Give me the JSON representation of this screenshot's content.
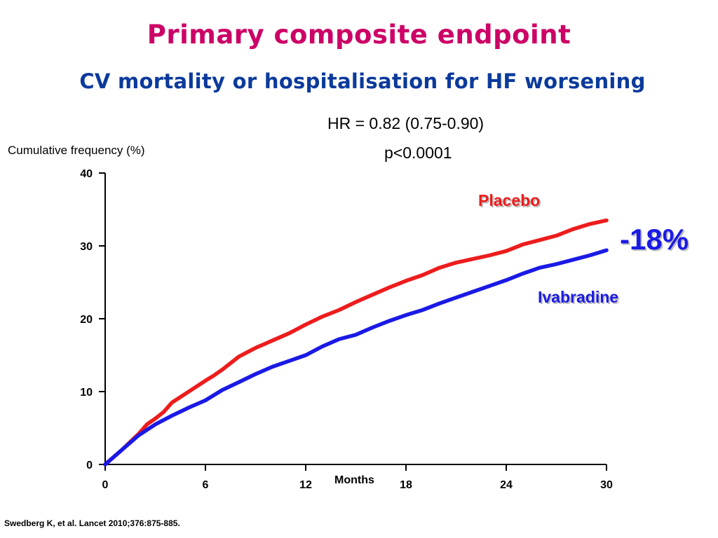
{
  "slide": {
    "title": "Primary composite endpoint",
    "subtitle": "CV mortality or hospitalisation for HF worsening",
    "hr_text": "HR = 0.82 (0.75-0.90)",
    "p_text": "p<0.0001",
    "reduction_text": "-18%",
    "citation": "Swedberg K, et al. Lancet 2010;376:875-885."
  },
  "colors": {
    "title": "#cc0066",
    "subtitle": "#0b3a9c",
    "placebo": "#ee1c1c",
    "ivabradine": "#1a1ae6"
  },
  "chart_data": {
    "type": "line",
    "title": "",
    "xlabel": "Months",
    "ylabel": "Cumulative frequency (%)",
    "xlim": [
      0,
      30
    ],
    "ylim": [
      0,
      40
    ],
    "xticks": [
      "0",
      "6",
      "12",
      "18",
      "24",
      "30"
    ],
    "yticks": [
      "0",
      "10",
      "20",
      "30",
      "40"
    ],
    "grid": false,
    "legend": "inline labels at right",
    "series": [
      {
        "name": "Placebo",
        "color": "#ee1c1c",
        "x": [
          0,
          1,
          2,
          2.5,
          3,
          3.5,
          4,
          5,
          6,
          6.5,
          7,
          8,
          9,
          10,
          11,
          12,
          13,
          14,
          15,
          16,
          17,
          18,
          19,
          20,
          21,
          22,
          23,
          24,
          25,
          26,
          27,
          28,
          29,
          30
        ],
        "y": [
          0,
          2.0,
          4.2,
          5.5,
          6.3,
          7.2,
          8.5,
          10.0,
          11.5,
          12.2,
          13.0,
          14.8,
          16.0,
          17.0,
          18.0,
          19.2,
          20.3,
          21.2,
          22.3,
          23.3,
          24.3,
          25.2,
          26.0,
          27.0,
          27.7,
          28.2,
          28.7,
          29.3,
          30.2,
          30.8,
          31.4,
          32.3,
          33.0,
          33.5
        ]
      },
      {
        "name": "Ivabradine",
        "color": "#1a1ae6",
        "x": [
          0,
          1,
          2,
          3,
          4,
          5,
          6,
          7,
          8,
          9,
          10,
          11,
          12,
          13,
          14,
          15,
          16,
          17,
          18,
          19,
          20,
          21,
          22,
          23,
          24,
          25,
          26,
          27,
          28,
          29,
          30
        ],
        "y": [
          0,
          2.0,
          4.0,
          5.5,
          6.7,
          7.8,
          8.8,
          10.2,
          11.3,
          12.4,
          13.4,
          14.2,
          15.0,
          16.2,
          17.2,
          17.8,
          18.8,
          19.7,
          20.5,
          21.2,
          22.1,
          22.9,
          23.7,
          24.5,
          25.3,
          26.2,
          27.0,
          27.5,
          28.1,
          28.7,
          29.4
        ]
      }
    ]
  }
}
